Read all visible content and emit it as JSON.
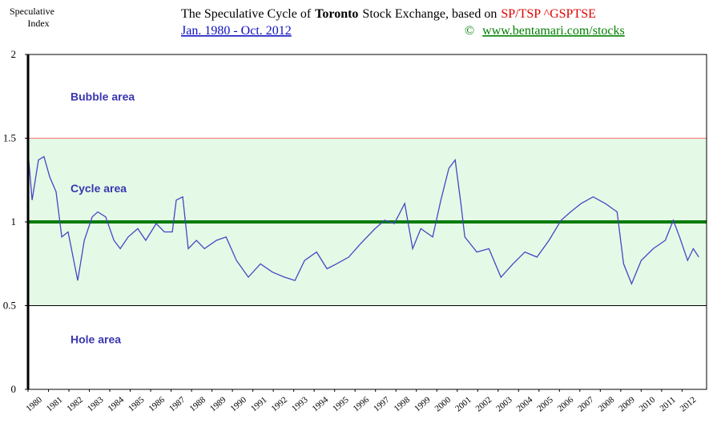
{
  "chart_data": {
    "type": "line",
    "title_parts": [
      "The Speculative Cycle of",
      "Toronto",
      "Stock Exchange,  based on",
      "SP/TSP ^GSPTSE"
    ],
    "subtitle": "Jan. 1980 - Oct. 2012",
    "credit_symbol": "©",
    "credit_url": "www.bentamari.com/stocks",
    "y_label": [
      "Speculative",
      "Index"
    ],
    "annotations": [
      {
        "text": "Bubble area",
        "y": 1.75
      },
      {
        "text": "Cycle area",
        "y": 1.2
      },
      {
        "text": "Hole area",
        "y": 0.3
      }
    ],
    "band": {
      "range": [
        0.5,
        1.5
      ],
      "color": "#e4fae6"
    },
    "reference_lines": [
      {
        "value": 1.5,
        "color": "#ff7070",
        "width": 1
      },
      {
        "value": 1,
        "color": "#007a00",
        "width": 4
      },
      {
        "value": 0.5,
        "color": "#000000",
        "width": 1
      }
    ],
    "color": "#4a44c4",
    "x": [
      1980.0,
      1980.2,
      1980.51,
      1980.78,
      1981.06,
      1981.37,
      1981.65,
      1981.96,
      1982.43,
      1982.75,
      1983.14,
      1983.41,
      1983.8,
      1984.2,
      1984.51,
      1984.9,
      1985.37,
      1985.76,
      1986.27,
      1986.67,
      1987.06,
      1987.25,
      1987.57,
      1987.84,
      1988.24,
      1988.63,
      1989.22,
      1989.69,
      1990.2,
      1990.78,
      1991.37,
      1991.96,
      1992.55,
      1993.06,
      1993.53,
      1994.12,
      1994.63,
      1995.1,
      1995.69,
      1996.27,
      1996.98,
      1997.45,
      1997.92,
      1998.43,
      1998.82,
      1999.22,
      1999.8,
      2000.2,
      2000.59,
      2000.9,
      2001.18,
      2001.37,
      2001.96,
      2002.55,
      2003.14,
      2003.73,
      2004.31,
      2004.9,
      2005.49,
      2006.08,
      2006.55,
      2007.06,
      2007.65,
      2008.24,
      2008.82,
      2009.14,
      2009.53,
      2010.0,
      2010.59,
      2011.18,
      2011.57,
      2011.88,
      2012.27,
      2012.55,
      2012.82
    ],
    "values": [
      1.42,
      1.13,
      1.37,
      1.39,
      1.27,
      1.18,
      0.91,
      0.94,
      0.65,
      0.89,
      1.03,
      1.06,
      1.03,
      0.89,
      0.84,
      0.91,
      0.96,
      0.89,
      0.99,
      0.94,
      0.94,
      1.13,
      1.15,
      0.84,
      0.89,
      0.84,
      0.89,
      0.91,
      0.77,
      0.67,
      0.75,
      0.7,
      0.67,
      0.65,
      0.77,
      0.82,
      0.72,
      0.75,
      0.79,
      0.87,
      0.96,
      1.01,
      0.99,
      1.11,
      0.84,
      0.96,
      0.91,
      1.13,
      1.32,
      1.37,
      1.11,
      0.91,
      0.82,
      0.84,
      0.67,
      0.75,
      0.82,
      0.79,
      0.89,
      1.01,
      1.06,
      1.11,
      1.15,
      1.11,
      1.06,
      0.75,
      0.63,
      0.77,
      0.84,
      0.89,
      1.01,
      0.91,
      0.77,
      0.84,
      0.79
    ],
    "xlim": [
      1980,
      2013.2
    ],
    "xticks": [
      1980,
      1981,
      1982,
      1983,
      1984,
      1985,
      1986,
      1987,
      1988,
      1989,
      1990,
      1991,
      1992,
      1993,
      1994,
      1995,
      1996,
      1997,
      1998,
      1999,
      2000,
      2001,
      2002,
      2003,
      2004,
      2005,
      2006,
      2007,
      2008,
      2009,
      2010,
      2011,
      2012
    ],
    "ylim": [
      0,
      2
    ],
    "yticks": [
      0,
      0.5,
      1,
      1.5,
      2
    ]
  }
}
